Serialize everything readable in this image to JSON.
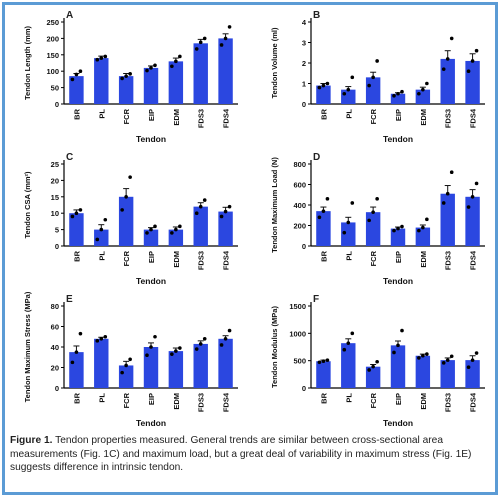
{
  "figure": {
    "caption_label": "Figure 1.",
    "caption_text": "Tendon properties measured. General trends are similar between cross-sectional area measurements (Fig. 1C) and maximum load, but a great deal of variability in maximum stress (Fig. 1E) suggests difference in intrinsic tendon."
  },
  "colors": {
    "bar": "#2b47e0",
    "dot": "#000000",
    "axis": "#000000",
    "border": "#5b9bd5"
  },
  "chart_data": [
    {
      "panel": "A",
      "type": "bar",
      "categories": [
        "BR",
        "PL",
        "FCR",
        "EIP",
        "EDM",
        "FDS3",
        "FDS4"
      ],
      "values": [
        85,
        140,
        85,
        110,
        130,
        185,
        200
      ],
      "errors": [
        8,
        6,
        8,
        6,
        10,
        12,
        14
      ],
      "points": [
        [
          75,
          90,
          100
        ],
        [
          135,
          140,
          145
        ],
        [
          78,
          85,
          92
        ],
        [
          102,
          110,
          118
        ],
        [
          115,
          130,
          145
        ],
        [
          168,
          188,
          200
        ],
        [
          180,
          200,
          235
        ]
      ],
      "xlabel": "Tendon",
      "ylabel": "Tendon Length (mm)",
      "ylim": [
        0,
        250
      ],
      "yticks": [
        "0",
        "50",
        "100",
        "150",
        "200",
        "250"
      ]
    },
    {
      "panel": "B",
      "type": "bar",
      "categories": [
        "BR",
        "PL",
        "FCR",
        "EIP",
        "EDM",
        "FDS3",
        "FDS4"
      ],
      "values": [
        0.9,
        0.7,
        1.3,
        0.5,
        0.7,
        2.2,
        2.1
      ],
      "errors": [
        0.1,
        0.15,
        0.25,
        0.05,
        0.12,
        0.4,
        0.35
      ],
      "points": [
        [
          0.8,
          0.9,
          1.0
        ],
        [
          0.5,
          0.7,
          1.3
        ],
        [
          0.9,
          1.3,
          2.1
        ],
        [
          0.4,
          0.5,
          0.6
        ],
        [
          0.5,
          0.7,
          1.0
        ],
        [
          1.7,
          2.2,
          3.2
        ],
        [
          1.6,
          2.1,
          2.6
        ]
      ],
      "xlabel": "Tendon",
      "ylabel": "Tendon Volume (ml)",
      "ylim": [
        0,
        4
      ],
      "yticks": [
        "0",
        "1",
        "2",
        "3",
        "4"
      ]
    },
    {
      "panel": "C",
      "type": "bar",
      "categories": [
        "BR",
        "PL",
        "FCR",
        "EIP",
        "EDM",
        "FDS3",
        "FDS4"
      ],
      "values": [
        10,
        5,
        15,
        5,
        5,
        12,
        10.5
      ],
      "errors": [
        1,
        1.5,
        2.5,
        0.6,
        0.8,
        1.2,
        1.3
      ],
      "points": [
        [
          9,
          10,
          11
        ],
        [
          2,
          5,
          8
        ],
        [
          11,
          15,
          21
        ],
        [
          4,
          5,
          6
        ],
        [
          4,
          5,
          6
        ],
        [
          10,
          12,
          14
        ],
        [
          9,
          10.5,
          12
        ]
      ],
      "xlabel": "Tendon",
      "ylabel": "Tendon CSA (mm²)",
      "ylim": [
        0,
        25
      ],
      "yticks": [
        "0",
        "5",
        "10",
        "15",
        "20",
        "25"
      ]
    },
    {
      "panel": "D",
      "type": "bar",
      "categories": [
        "BR",
        "PL",
        "FCR",
        "EIP",
        "EDM",
        "FDS3",
        "FDS4"
      ],
      "values": [
        340,
        230,
        330,
        170,
        180,
        510,
        480
      ],
      "errors": [
        40,
        50,
        50,
        15,
        25,
        80,
        70
      ],
      "points": [
        [
          280,
          340,
          460
        ],
        [
          130,
          230,
          420
        ],
        [
          250,
          330,
          460
        ],
        [
          150,
          170,
          190
        ],
        [
          150,
          180,
          260
        ],
        [
          420,
          510,
          720
        ],
        [
          380,
          480,
          610
        ]
      ],
      "xlabel": "Tendon",
      "ylabel": "Tendon Maximum Load (N)",
      "ylim": [
        0,
        800
      ],
      "yticks": [
        "0",
        "200",
        "400",
        "600",
        "800"
      ]
    },
    {
      "panel": "E",
      "type": "bar",
      "categories": [
        "BR",
        "PL",
        "FCR",
        "EIP",
        "EDM",
        "FDS3",
        "FDS4"
      ],
      "values": [
        35,
        48,
        22,
        40,
        36,
        43,
        48
      ],
      "errors": [
        6,
        1.5,
        4,
        4,
        3,
        3,
        3
      ],
      "points": [
        [
          25,
          35,
          53
        ],
        [
          46,
          48,
          50
        ],
        [
          15,
          22,
          28
        ],
        [
          32,
          40,
          50
        ],
        [
          33,
          36,
          39
        ],
        [
          38,
          43,
          48
        ],
        [
          42,
          48,
          56
        ]
      ],
      "xlabel": "Tendon",
      "ylabel": "Tendon Maximum Stress (MPa)",
      "ylim": [
        0,
        80
      ],
      "yticks": [
        "0",
        "20",
        "40",
        "60",
        "80"
      ]
    },
    {
      "panel": "F",
      "type": "bar",
      "categories": [
        "BR",
        "PL",
        "FCR",
        "EIP",
        "EDM",
        "FDS3",
        "FDS4"
      ],
      "values": [
        490,
        820,
        390,
        780,
        590,
        510,
        510
      ],
      "errors": [
        20,
        80,
        40,
        80,
        30,
        40,
        80
      ],
      "points": [
        [
          470,
          490,
          510
        ],
        [
          700,
          820,
          1000
        ],
        [
          330,
          390,
          480
        ],
        [
          650,
          780,
          1050
        ],
        [
          550,
          590,
          620
        ],
        [
          460,
          510,
          580
        ],
        [
          380,
          510,
          640
        ]
      ],
      "xlabel": "Tendon",
      "ylabel": "Tendon Modulus (MPa)",
      "ylim": [
        0,
        1500
      ],
      "yticks": [
        "0",
        "500",
        "1000",
        "1500"
      ]
    }
  ]
}
